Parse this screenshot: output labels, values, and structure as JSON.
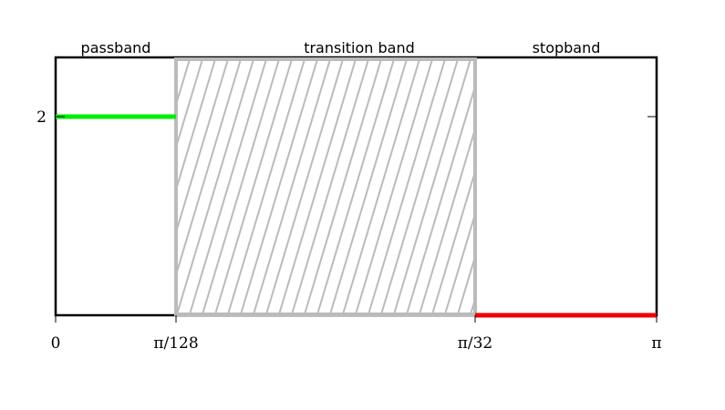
{
  "bands": {
    "passband": "passband",
    "transition": "transition band",
    "stopband": "stopband"
  },
  "y_ticks": {
    "level": "2"
  },
  "x_ticks": {
    "zero": "0",
    "pass_edge": "π/128",
    "stop_edge": "π/32",
    "end": "π"
  },
  "colors": {
    "passband_line": "#00ee00",
    "stopband_line": "#ee0000",
    "transition_fill": "#bbbbbb",
    "frame": "#000000"
  }
}
